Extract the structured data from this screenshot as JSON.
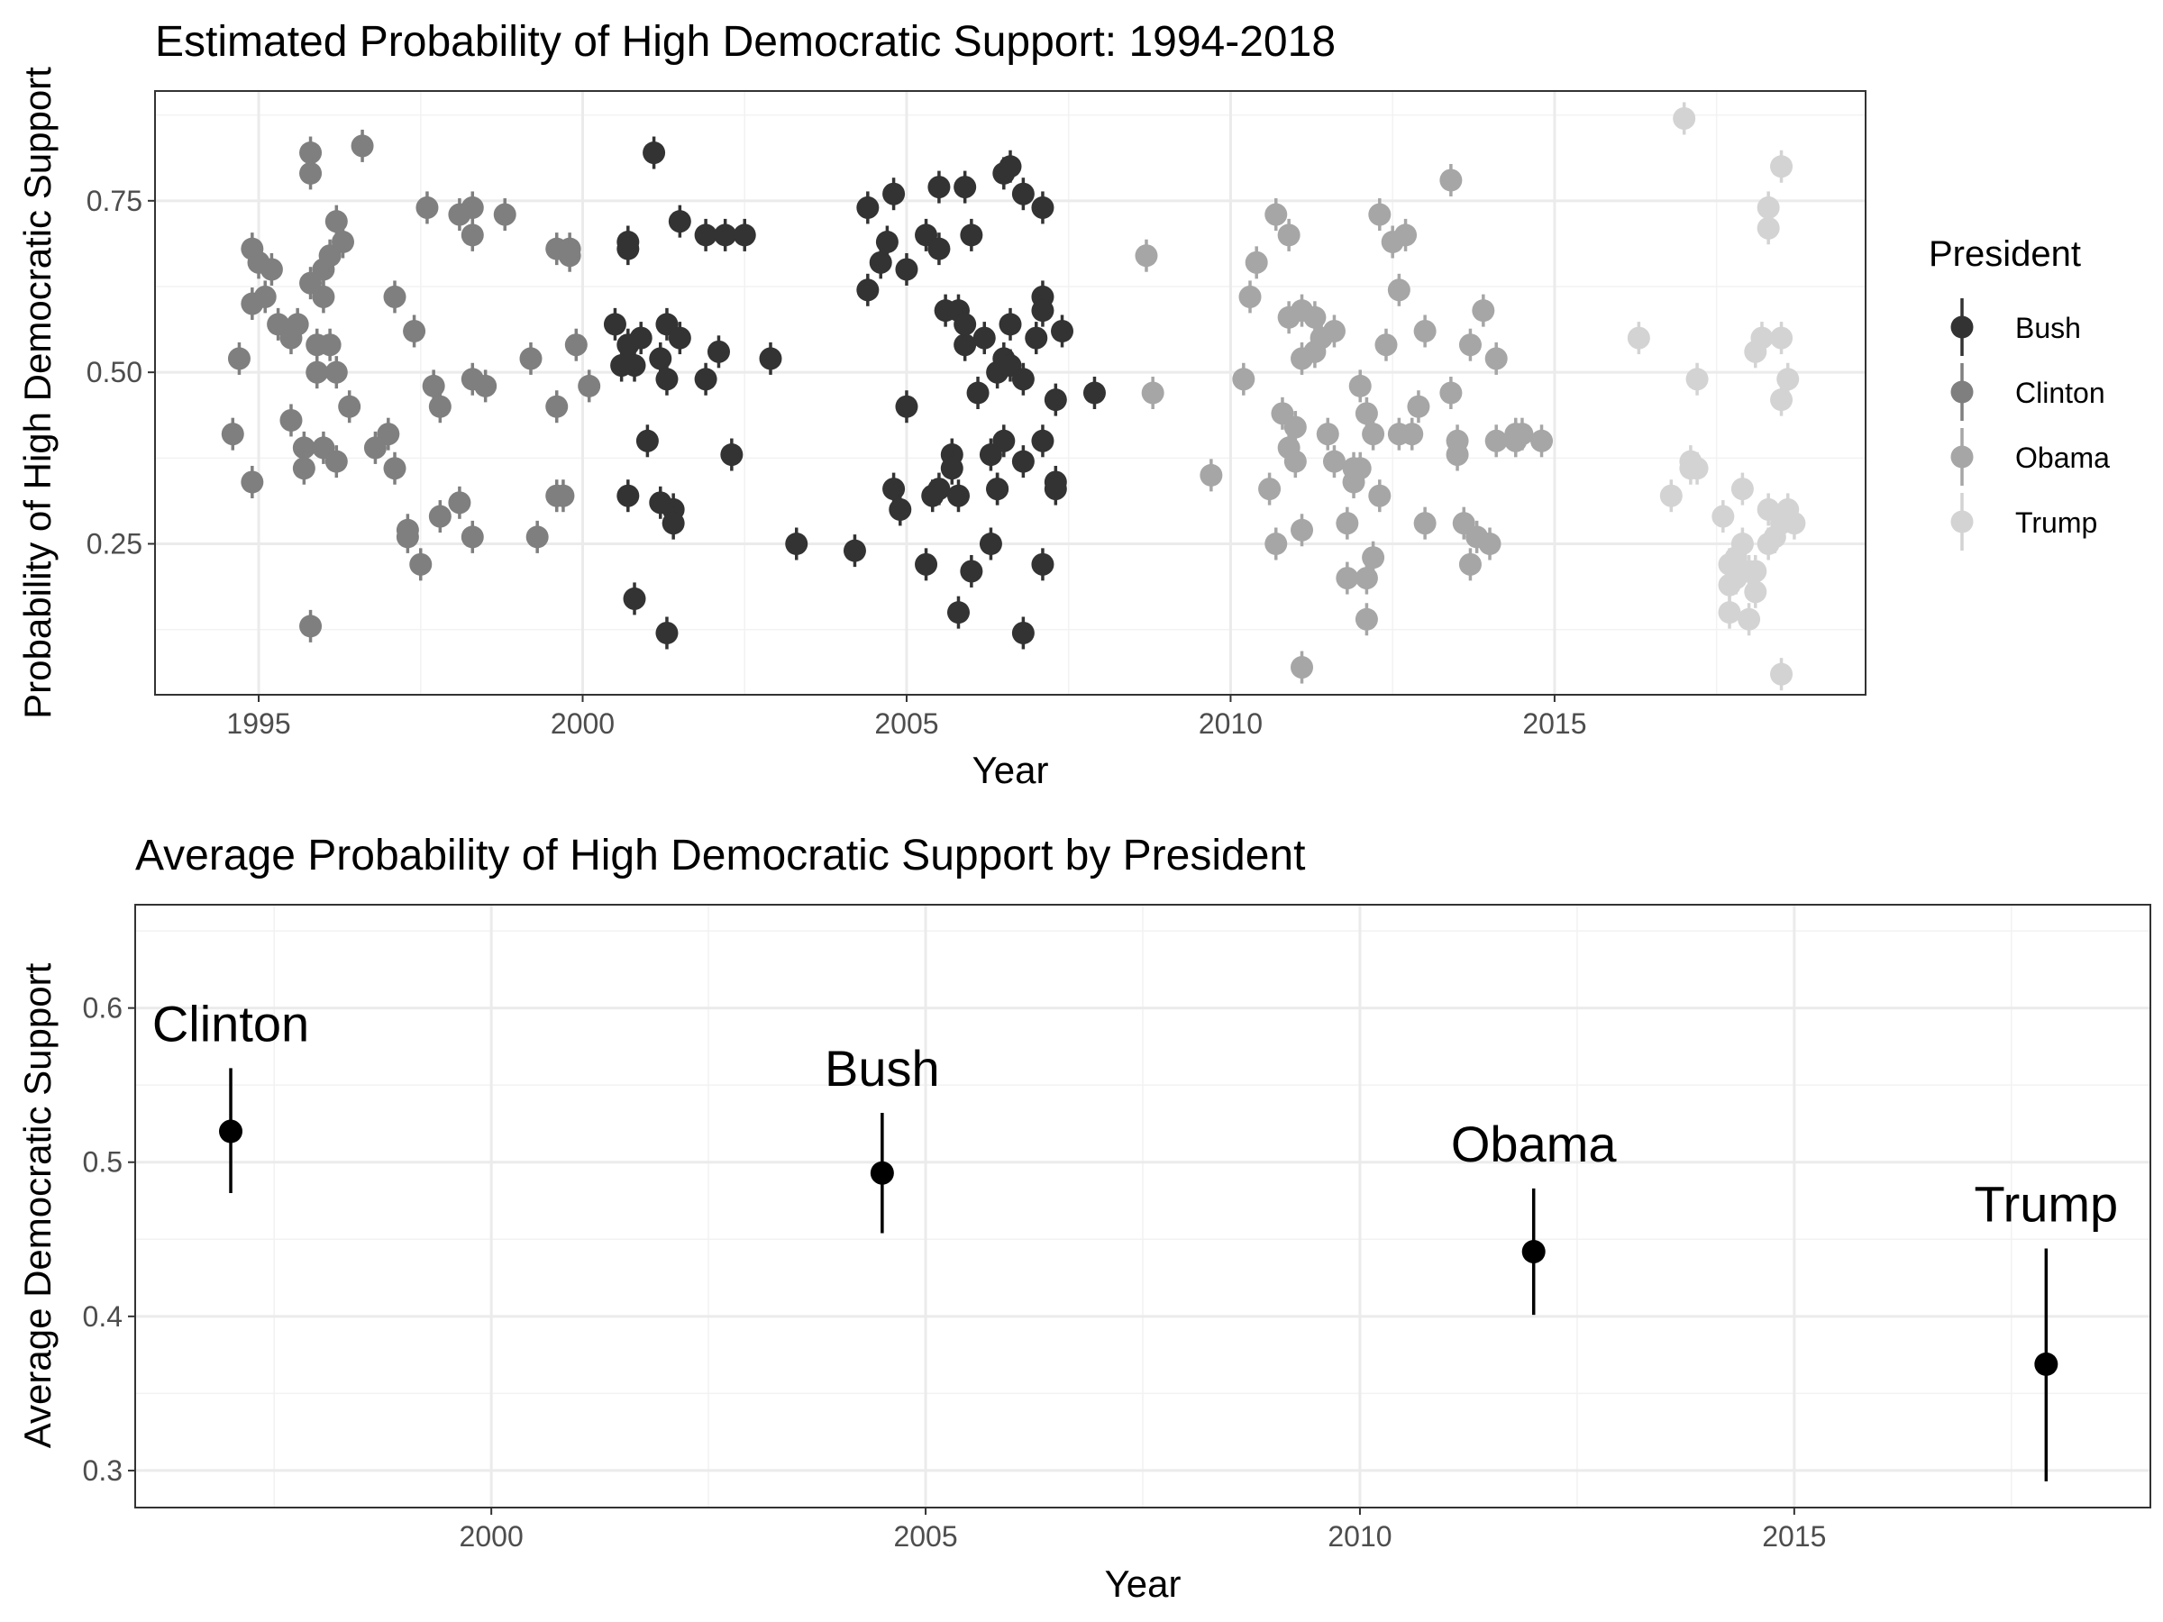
{
  "chart_data": [
    {
      "type": "scatter",
      "title": "Estimated Probability of High Democratic Support: 1994-2018",
      "xlabel": "Year",
      "ylabel": "Probability of High Democratic Support",
      "xlim": [
        1993.4,
        2019.8
      ],
      "ylim": [
        0.03,
        0.91
      ],
      "x_ticks": [
        1995,
        2000,
        2005,
        2010,
        2015
      ],
      "x_tick_labels": [
        "1995",
        "2000",
        "2005",
        "2010",
        "2015"
      ],
      "y_ticks": [
        0.25,
        0.5,
        0.75
      ],
      "y_tick_labels": [
        "0.25",
        "0.50",
        "0.75"
      ],
      "grid": true,
      "legend": {
        "title": "President",
        "position": "right"
      },
      "series": [
        {
          "name": "Clinton",
          "color": "#7f7f7f",
          "points": [
            [
              1994.6,
              0.41
            ],
            [
              1994.7,
              0.52
            ],
            [
              1994.9,
              0.6
            ],
            [
              1994.9,
              0.68
            ],
            [
              1995.0,
              0.66
            ],
            [
              1995.1,
              0.61
            ],
            [
              1995.2,
              0.65
            ],
            [
              1994.9,
              0.34
            ],
            [
              1995.3,
              0.57
            ],
            [
              1995.5,
              0.55
            ],
            [
              1995.6,
              0.57
            ],
            [
              1995.5,
              0.43
            ],
            [
              1995.7,
              0.39
            ],
            [
              1995.7,
              0.36
            ],
            [
              1995.8,
              0.63
            ],
            [
              1995.8,
              0.82
            ],
            [
              1995.8,
              0.79
            ],
            [
              1995.9,
              0.5
            ],
            [
              1995.9,
              0.54
            ],
            [
              1996.0,
              0.65
            ],
            [
              1996.0,
              0.61
            ],
            [
              1996.0,
              0.39
            ],
            [
              1996.1,
              0.67
            ],
            [
              1996.1,
              0.54
            ],
            [
              1996.2,
              0.72
            ],
            [
              1996.2,
              0.5
            ],
            [
              1996.3,
              0.69
            ],
            [
              1996.2,
              0.37
            ],
            [
              1995.8,
              0.13
            ],
            [
              1996.4,
              0.45
            ],
            [
              1996.6,
              0.83
            ],
            [
              1996.8,
              0.39
            ],
            [
              1997.0,
              0.41
            ],
            [
              1997.1,
              0.61
            ],
            [
              1997.1,
              0.36
            ],
            [
              1997.3,
              0.27
            ],
            [
              1997.3,
              0.26
            ],
            [
              1997.4,
              0.56
            ],
            [
              1997.5,
              0.22
            ],
            [
              1997.6,
              0.74
            ],
            [
              1997.7,
              0.48
            ],
            [
              1997.8,
              0.45
            ],
            [
              1997.8,
              0.29
            ],
            [
              1998.1,
              0.73
            ],
            [
              1998.1,
              0.31
            ],
            [
              1998.3,
              0.74
            ],
            [
              1998.3,
              0.7
            ],
            [
              1998.3,
              0.49
            ],
            [
              1998.3,
              0.26
            ],
            [
              1998.5,
              0.48
            ],
            [
              1998.8,
              0.73
            ],
            [
              1999.2,
              0.52
            ],
            [
              1999.3,
              0.26
            ],
            [
              1999.6,
              0.45
            ],
            [
              1999.6,
              0.68
            ],
            [
              1999.6,
              0.32
            ],
            [
              1999.7,
              0.32
            ],
            [
              1999.8,
              0.68
            ],
            [
              1999.8,
              0.67
            ],
            [
              1999.9,
              0.54
            ],
            [
              2000.1,
              0.48
            ]
          ]
        },
        {
          "name": "Bush",
          "color": "#333333",
          "points": [
            [
              2000.5,
              0.57
            ],
            [
              2000.6,
              0.51
            ],
            [
              2000.7,
              0.69
            ],
            [
              2000.7,
              0.68
            ],
            [
              2000.7,
              0.54
            ],
            [
              2000.7,
              0.32
            ],
            [
              2000.8,
              0.51
            ],
            [
              2000.8,
              0.17
            ],
            [
              2000.9,
              0.55
            ],
            [
              2001.0,
              0.4
            ],
            [
              2001.1,
              0.82
            ],
            [
              2001.2,
              0.52
            ],
            [
              2001.2,
              0.31
            ],
            [
              2001.3,
              0.49
            ],
            [
              2001.3,
              0.12
            ],
            [
              2001.3,
              0.57
            ],
            [
              2001.4,
              0.3
            ],
            [
              2001.4,
              0.28
            ],
            [
              2001.5,
              0.55
            ],
            [
              2001.5,
              0.72
            ],
            [
              2001.9,
              0.49
            ],
            [
              2001.9,
              0.7
            ],
            [
              2002.1,
              0.53
            ],
            [
              2002.2,
              0.7
            ],
            [
              2002.3,
              0.38
            ],
            [
              2002.5,
              0.7
            ],
            [
              2002.9,
              0.52
            ],
            [
              2003.3,
              0.25
            ],
            [
              2004.2,
              0.24
            ],
            [
              2004.4,
              0.74
            ],
            [
              2004.4,
              0.62
            ],
            [
              2004.6,
              0.66
            ],
            [
              2004.7,
              0.69
            ],
            [
              2004.8,
              0.76
            ],
            [
              2004.8,
              0.33
            ],
            [
              2004.9,
              0.3
            ],
            [
              2005.0,
              0.65
            ],
            [
              2005.0,
              0.45
            ],
            [
              2005.3,
              0.7
            ],
            [
              2005.3,
              0.22
            ],
            [
              2005.4,
              0.32
            ],
            [
              2005.5,
              0.68
            ],
            [
              2005.5,
              0.77
            ],
            [
              2005.5,
              0.33
            ],
            [
              2005.6,
              0.59
            ],
            [
              2005.7,
              0.38
            ],
            [
              2005.7,
              0.36
            ],
            [
              2005.8,
              0.59
            ],
            [
              2005.8,
              0.15
            ],
            [
              2005.8,
              0.32
            ],
            [
              2005.9,
              0.77
            ],
            [
              2005.9,
              0.54
            ],
            [
              2005.9,
              0.57
            ],
            [
              2006.0,
              0.7
            ],
            [
              2006.0,
              0.21
            ],
            [
              2006.1,
              0.47
            ],
            [
              2006.2,
              0.55
            ],
            [
              2006.3,
              0.25
            ],
            [
              2006.3,
              0.38
            ],
            [
              2006.4,
              0.5
            ],
            [
              2006.4,
              0.33
            ],
            [
              2006.4,
              0.33
            ],
            [
              2006.5,
              0.4
            ],
            [
              2006.5,
              0.52
            ],
            [
              2006.5,
              0.79
            ],
            [
              2006.6,
              0.8
            ],
            [
              2006.6,
              0.57
            ],
            [
              2006.6,
              0.51
            ],
            [
              2006.8,
              0.12
            ],
            [
              2006.8,
              0.49
            ],
            [
              2006.8,
              0.76
            ],
            [
              2006.8,
              0.37
            ],
            [
              2007.0,
              0.55
            ],
            [
              2007.1,
              0.61
            ],
            [
              2007.1,
              0.59
            ],
            [
              2007.1,
              0.4
            ],
            [
              2007.1,
              0.74
            ],
            [
              2007.1,
              0.22
            ],
            [
              2007.3,
              0.46
            ],
            [
              2007.3,
              0.34
            ],
            [
              2007.3,
              0.33
            ],
            [
              2007.4,
              0.56
            ],
            [
              2007.9,
              0.47
            ]
          ]
        },
        {
          "name": "Obama",
          "color": "#a6a6a6",
          "points": [
            [
              2008.7,
              0.67
            ],
            [
              2008.8,
              0.47
            ],
            [
              2009.7,
              0.35
            ],
            [
              2010.2,
              0.49
            ],
            [
              2010.3,
              0.61
            ],
            [
              2010.4,
              0.66
            ],
            [
              2010.6,
              0.33
            ],
            [
              2010.7,
              0.73
            ],
            [
              2010.7,
              0.25
            ],
            [
              2010.8,
              0.44
            ],
            [
              2010.9,
              0.7
            ],
            [
              2010.9,
              0.39
            ],
            [
              2010.9,
              0.58
            ],
            [
              2011.0,
              0.37
            ],
            [
              2011.0,
              0.42
            ],
            [
              2011.1,
              0.59
            ],
            [
              2011.1,
              0.52
            ],
            [
              2011.1,
              0.27
            ],
            [
              2011.1,
              0.07
            ],
            [
              2011.3,
              0.53
            ],
            [
              2011.3,
              0.58
            ],
            [
              2011.4,
              0.55
            ],
            [
              2011.5,
              0.41
            ],
            [
              2011.6,
              0.56
            ],
            [
              2011.6,
              0.37
            ],
            [
              2011.8,
              0.2
            ],
            [
              2011.8,
              0.28
            ],
            [
              2011.9,
              0.34
            ],
            [
              2011.9,
              0.36
            ],
            [
              2012.0,
              0.36
            ],
            [
              2012.0,
              0.48
            ],
            [
              2012.1,
              0.44
            ],
            [
              2012.1,
              0.2
            ],
            [
              2012.1,
              0.14
            ],
            [
              2012.2,
              0.23
            ],
            [
              2012.2,
              0.41
            ],
            [
              2012.3,
              0.32
            ],
            [
              2012.3,
              0.73
            ],
            [
              2012.4,
              0.54
            ],
            [
              2012.5,
              0.69
            ],
            [
              2012.6,
              0.62
            ],
            [
              2012.6,
              0.41
            ],
            [
              2012.7,
              0.7
            ],
            [
              2012.8,
              0.41
            ],
            [
              2012.9,
              0.45
            ],
            [
              2013.0,
              0.56
            ],
            [
              2013.0,
              0.28
            ],
            [
              2013.4,
              0.47
            ],
            [
              2013.4,
              0.78
            ],
            [
              2013.5,
              0.38
            ],
            [
              2013.5,
              0.4
            ],
            [
              2013.6,
              0.28
            ],
            [
              2013.7,
              0.54
            ],
            [
              2013.7,
              0.22
            ],
            [
              2013.8,
              0.26
            ],
            [
              2013.9,
              0.59
            ],
            [
              2014.0,
              0.25
            ],
            [
              2014.1,
              0.4
            ],
            [
              2014.1,
              0.52
            ],
            [
              2014.4,
              0.4
            ],
            [
              2014.4,
              0.41
            ],
            [
              2014.5,
              0.41
            ],
            [
              2014.8,
              0.4
            ]
          ]
        },
        {
          "name": "Trump",
          "color": "#d3d3d3",
          "points": [
            [
              2016.3,
              0.55
            ],
            [
              2016.8,
              0.32
            ],
            [
              2017.0,
              0.87
            ],
            [
              2017.1,
              0.37
            ],
            [
              2017.1,
              0.36
            ],
            [
              2017.2,
              0.49
            ],
            [
              2017.2,
              0.36
            ],
            [
              2017.6,
              0.29
            ],
            [
              2017.7,
              0.19
            ],
            [
              2017.7,
              0.22
            ],
            [
              2017.7,
              0.15
            ],
            [
              2017.8,
              0.2
            ],
            [
              2017.8,
              0.23
            ],
            [
              2017.9,
              0.25
            ],
            [
              2017.9,
              0.33
            ],
            [
              2018.0,
              0.21
            ],
            [
              2018.0,
              0.14
            ],
            [
              2018.1,
              0.21
            ],
            [
              2018.1,
              0.18
            ],
            [
              2018.1,
              0.53
            ],
            [
              2018.2,
              0.55
            ],
            [
              2018.3,
              0.74
            ],
            [
              2018.3,
              0.71
            ],
            [
              2018.3,
              0.3
            ],
            [
              2018.3,
              0.25
            ],
            [
              2018.4,
              0.26
            ],
            [
              2018.5,
              0.28
            ],
            [
              2018.5,
              0.46
            ],
            [
              2018.5,
              0.55
            ],
            [
              2018.5,
              0.8
            ],
            [
              2018.5,
              0.06
            ],
            [
              2018.6,
              0.49
            ],
            [
              2018.6,
              0.3
            ],
            [
              2018.7,
              0.28
            ]
          ]
        }
      ]
    },
    {
      "type": "scatter",
      "title": "Average Probability of High Democratic Support by President",
      "xlabel": "Year",
      "ylabel": "Average Democratic Support",
      "xlim": [
        1995.9,
        2019.1
      ],
      "ylim": [
        0.276,
        0.667
      ],
      "x_ticks": [
        2000,
        2005,
        2010,
        2015
      ],
      "x_tick_labels": [
        "2000",
        "2005",
        "2010",
        "2015"
      ],
      "y_ticks": [
        0.3,
        0.4,
        0.5,
        0.6
      ],
      "y_tick_labels": [
        "0.3",
        "0.4",
        "0.5",
        "0.6"
      ],
      "grid": true,
      "points": [
        {
          "label": "Clinton",
          "x": 1997,
          "y": 0.52,
          "ymin": 0.48,
          "ymax": 0.561
        },
        {
          "label": "Bush",
          "x": 2004.5,
          "y": 0.493,
          "ymin": 0.454,
          "ymax": 0.532
        },
        {
          "label": "Obama",
          "x": 2012,
          "y": 0.442,
          "ymin": 0.401,
          "ymax": 0.483
        },
        {
          "label": "Trump",
          "x": 2017.9,
          "y": 0.369,
          "ymin": 0.293,
          "ymax": 0.444
        }
      ]
    }
  ]
}
